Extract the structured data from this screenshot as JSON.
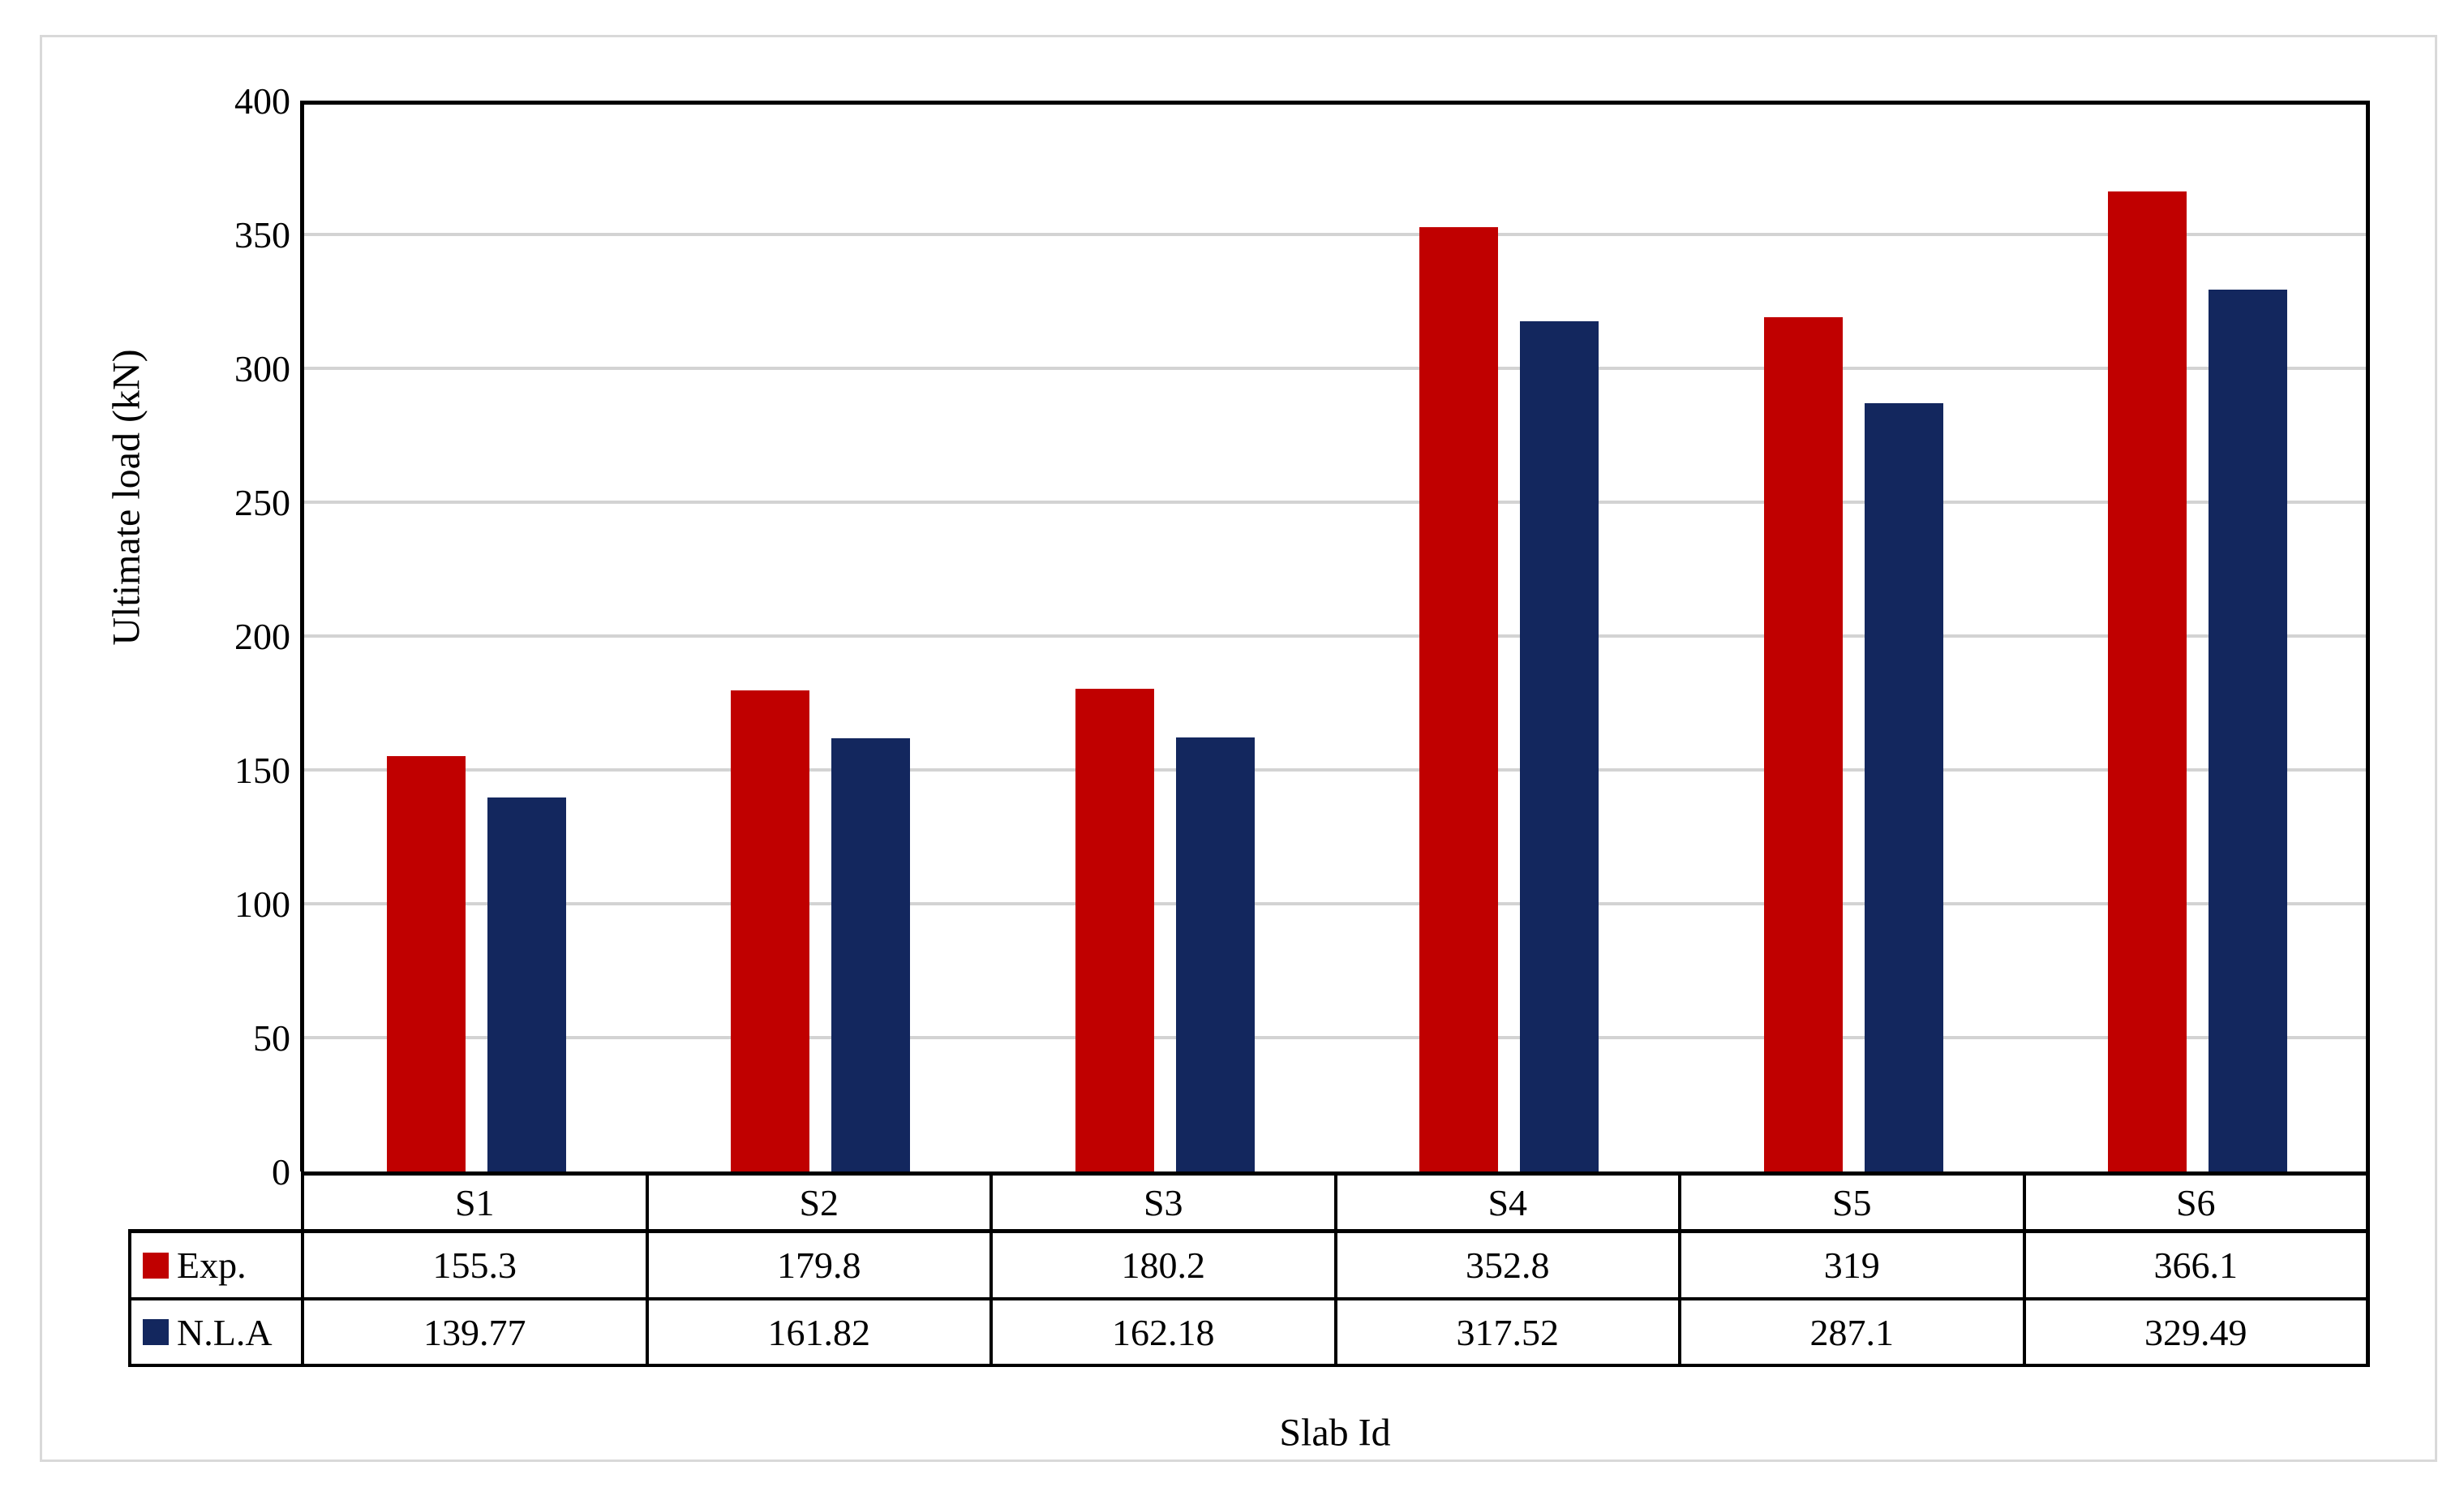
{
  "chart_data": {
    "type": "bar",
    "title": "",
    "categories": [
      "S1",
      "S2",
      "S3",
      "S4",
      "S5",
      "S6"
    ],
    "series": [
      {
        "name": "Exp.",
        "color": "#c00000",
        "values": [
          155.3,
          179.8,
          180.2,
          352.8,
          319,
          366.1
        ],
        "labels": [
          "155.3",
          "179.8",
          "180.2",
          "352.8",
          "319",
          "366.1"
        ]
      },
      {
        "name": "N.L.A",
        "color": "#13275e",
        "values": [
          139.77,
          161.82,
          162.18,
          317.52,
          287.1,
          329.49
        ],
        "labels": [
          "139.77",
          "161.82",
          "162.18",
          "317.52",
          "287.1",
          "329.49"
        ]
      }
    ],
    "xlabel": "Slab Id",
    "ylabel": "Ultimate load (kN)",
    "ylim": [
      0,
      400
    ],
    "ytick_step": 50,
    "yticks": [
      400,
      350,
      300,
      250,
      200,
      150,
      100,
      50,
      0
    ],
    "grid": "horizontal-major",
    "legend_position": "data-table-left",
    "colors": {
      "gridline": "#d3d3d3",
      "axis_line": "#000000",
      "table_border": "#000000",
      "frame_border": "#d9d9d9",
      "plot_background": "#ffffff"
    }
  }
}
